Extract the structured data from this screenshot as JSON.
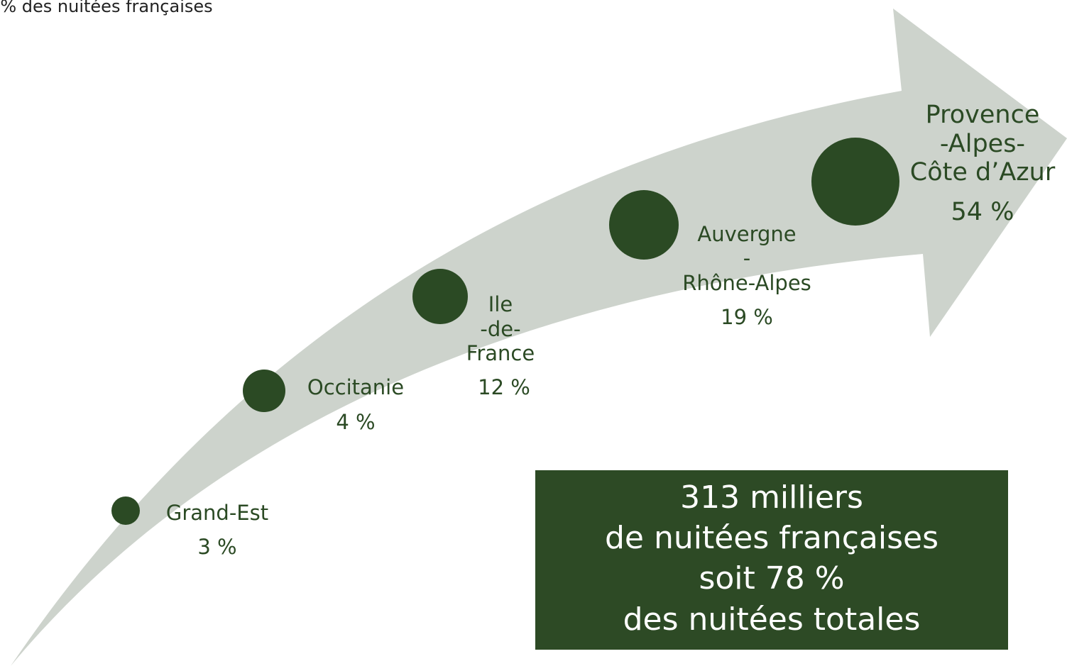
{
  "header": {
    "title": "% des nuitées françaises"
  },
  "nodes": [
    {
      "lines": [
        "Grand-Est"
      ],
      "value": "3 %"
    },
    {
      "lines": [
        "Occitanie"
      ],
      "value": "4 %"
    },
    {
      "lines": [
        "Ile",
        "-de-",
        "France"
      ],
      "value": "12 %"
    },
    {
      "lines": [
        "Auvergne",
        "-",
        "Rhône-Alpes"
      ],
      "value": "19 %"
    },
    {
      "lines": [
        "Provence",
        "-Alpes-",
        "Côte d’Azur"
      ],
      "value": "54 %"
    }
  ],
  "summary": {
    "lines": [
      "313 milliers",
      "de nuitées françaises",
      "soit 78 %",
      "des nuitées totales"
    ]
  }
}
